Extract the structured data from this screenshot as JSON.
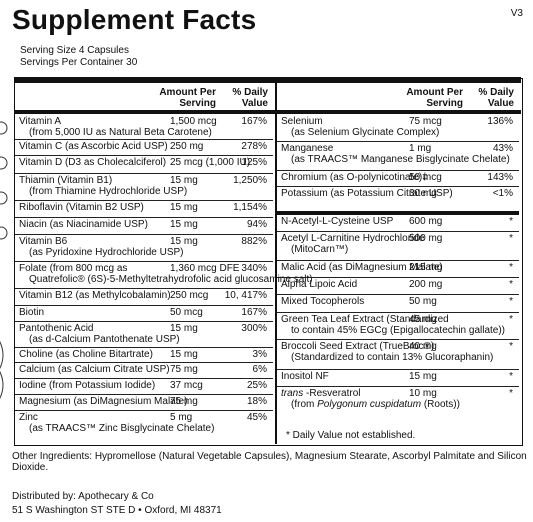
{
  "header": {
    "title": "Supplement Facts",
    "version": "V3",
    "serving_size": "Serving Size  4 Capsules",
    "servings_per_container": "Servings Per Container  30"
  },
  "columns": {
    "amount": "Amount Per",
    "amount2": "Serving",
    "dv": "% Daily",
    "dv2": "Value"
  },
  "left_rows": [
    {
      "name": "Vitamin A",
      "sub": "(from 5,000 IU as Natural Beta Carotene)",
      "amt": "1,500 mcg",
      "dv": "167%"
    },
    {
      "name": "Vitamin C (as Ascorbic Acid USP)",
      "sub": "",
      "amt": "250 mg",
      "dv": "278%"
    },
    {
      "name": "Vitamin D (D3 as Cholecalciferol)",
      "sub": "",
      "amt": "25 mcg (1,000 IU)",
      "dv": "125%"
    },
    {
      "name": "Thiamin (Vitamin B1)",
      "sub": "(from Thiamine Hydrochloride USP)",
      "amt": "15 mg",
      "dv": "1,250%"
    },
    {
      "name": "Riboflavin (Vitamin B2 USP)",
      "sub": "",
      "amt": "15 mg",
      "dv": "1,154%"
    },
    {
      "name": "Niacin (as Niacinamide USP)",
      "sub": "",
      "amt": "15 mg",
      "dv": "94%"
    },
    {
      "name": "Vitamin B6",
      "sub": "(as Pyridoxine Hydrochloride USP)",
      "amt": "15 mg",
      "dv": "882%"
    },
    {
      "name": "Folate (from 800 mcg as",
      "sub": "Quatrefolic® (6S)-5-Methyltetrahydrofolic acid glucosamine salt)",
      "amt": "1,360 mcg DFE",
      "dv": "340%"
    },
    {
      "name": "Vitamin B12 (as Methylcobalamin)",
      "sub": "",
      "amt": "250 mcg",
      "dv": "10, 417%"
    },
    {
      "name": "Biotin",
      "sub": "",
      "amt": "50 mcg",
      "dv": "167%"
    },
    {
      "name": "Pantothenic Acid",
      "sub": "(as d-Calcium Pantothenate USP)",
      "amt": "15 mg",
      "dv": "300%"
    },
    {
      "name": "Choline (as Choline Bitartrate)",
      "sub": "",
      "amt": "15 mg",
      "dv": "3%"
    },
    {
      "name": "Calcium (as Calcium Citrate USP)",
      "sub": "",
      "amt": "75 mg",
      "dv": "6%"
    },
    {
      "name": "Iodine (from Potassium Iodide)",
      "sub": "",
      "amt": "37 mcg",
      "dv": "25%"
    },
    {
      "name": "Magnesium (as DiMagnesium Malate)",
      "sub": "",
      "amt": "75 mg",
      "dv": "18%"
    },
    {
      "name": "Zinc",
      "sub": "(as TRAACS™ Zinc Bisglycinate Chelate)",
      "amt": "5 mg",
      "dv": "45%"
    }
  ],
  "right_rows": [
    {
      "name": "Selenium",
      "sub": "(as Selenium Glycinate Complex)",
      "amt": "75 mcg",
      "dv": "136%"
    },
    {
      "name": "Manganese",
      "sub": "(as TRAACS™ Manganese Bisglycinate Chelate)",
      "amt": "1 mg",
      "dv": "43%"
    },
    {
      "name": "Chromium (as O-polynicotinate)‡",
      "sub": "",
      "amt": "50 mcg",
      "dv": "143%"
    },
    {
      "name": "Potassium (as Potassium Citrate USP)",
      "sub": "",
      "amt": "30 mg",
      "dv": "<1%"
    },
    {
      "name": "N-Acetyl-L-Cysteine USP",
      "sub": "",
      "amt": "600 mg",
      "dv": "*"
    },
    {
      "name": "Acetyl L-Carnitine Hydrochloride",
      "sub": "(MitoCarn™)",
      "amt": "500 mg",
      "dv": "*"
    },
    {
      "name": "Malic Acid (as DiMagnesium Malate)",
      "sub": "",
      "amt": "215 mg",
      "dv": "*"
    },
    {
      "name": "Alpha Lipoic Acid",
      "sub": "",
      "amt": "200 mg",
      "dv": "*"
    },
    {
      "name": "Mixed Tocopherols",
      "sub": "",
      "amt": "50 mg",
      "dv": "*"
    },
    {
      "name": "Green Tea Leaf Extract  (Standardized",
      "sub": "to contain 45% EGCg (Epigallocatechin gallate))",
      "amt": "45 mg",
      "dv": "*"
    },
    {
      "name": "Broccoli Seed Extract (TrueBroc®)",
      "sub": "(Standardized to contain 13% Glucoraphanin)",
      "amt": "40 mg",
      "dv": "*"
    },
    {
      "name": "Inositol NF",
      "sub": "",
      "amt": "15 mg",
      "dv": "*"
    },
    {
      "name": "trans -Resveratrol",
      "sub": "(from Polygonum cuspidatum (Roots))",
      "amt": "10 mg",
      "dv": "*"
    }
  ],
  "dv_note": "* Daily Value not established.",
  "other_ingredients": "Other Ingredients: Hypromellose (Natural Vegetable Capsules), Magnesium Stearate, Ascorbyl Palmitate and Silicon Dioxide.",
  "distributor": {
    "line1": "Distributed by: Apothecary & Co",
    "line2": "51 S Washington ST STE D • Oxford, MI 48371"
  }
}
